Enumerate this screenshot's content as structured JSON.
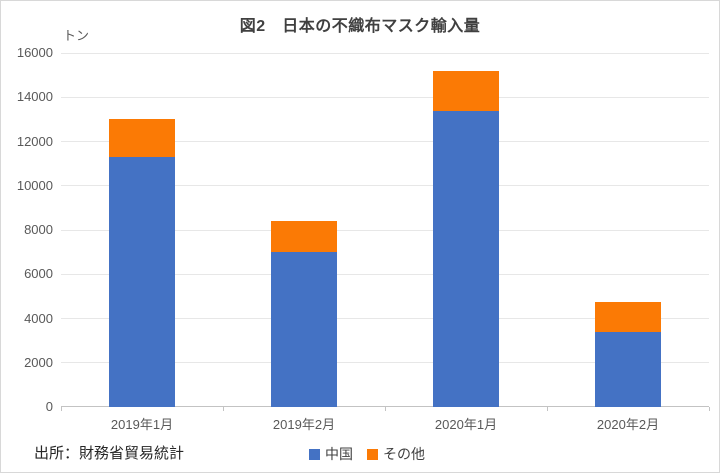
{
  "title": "図2　日本の不織布マスク輸入量",
  "unit_label": "トン",
  "source": "出所：財務省貿易統計",
  "colors": {
    "china_blue": "#4472c4",
    "other_orange": "#fb7a05",
    "gridline": "#e7e7e7",
    "axis_line": "#c3c3c3",
    "axis_text": "#595959",
    "title_text": "#404040"
  },
  "chart_data": {
    "type": "bar",
    "stacked": true,
    "title": "図2　日本の不織布マスク輸入量",
    "xlabel": "",
    "ylabel": "トン",
    "categories": [
      "2019年1月",
      "2019年2月",
      "2020年1月",
      "2020年2月"
    ],
    "series": [
      {
        "name": "中国",
        "color": "#4472c4",
        "values": [
          11300,
          7000,
          13400,
          3400
        ]
      },
      {
        "name": "その他",
        "color": "#fb7a05",
        "values": [
          1700,
          1400,
          1800,
          1350
        ]
      }
    ],
    "totals": [
      13000,
      8400,
      15200,
      4750
    ],
    "ylim": [
      0,
      16000
    ],
    "yticks": [
      0,
      2000,
      4000,
      6000,
      8000,
      10000,
      12000,
      14000,
      16000
    ],
    "grid": true,
    "legend_position": "bottom"
  }
}
